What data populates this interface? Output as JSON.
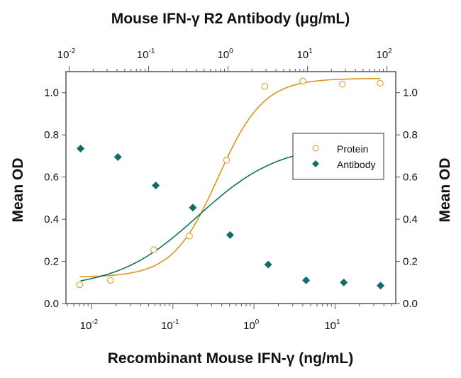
{
  "chart_data": {
    "type": "scatter",
    "title": "Mouse IFN-γ R2 Antibody (μg/mL)",
    "xlabel": "Recombinant Mouse IFN-γ (ng/mL)",
    "x2label": "Mouse IFN-γ R2 Antibody (μg/mL)",
    "ylabel": "Mean OD",
    "y2label": "Mean OD",
    "xscale": "log",
    "xlim": [
      0.0048,
      56
    ],
    "x2lim": [
      0.0091,
      129
    ],
    "ylim": [
      0,
      1.1
    ],
    "yticks": [
      "0.0",
      "0.2",
      "0.4",
      "0.6",
      "0.8",
      "1.0"
    ],
    "xticks": [
      {
        "base": "10",
        "exp": "-2"
      },
      {
        "base": "10",
        "exp": "-1"
      },
      {
        "base": "10",
        "exp": "0"
      },
      {
        "base": "10",
        "exp": "1"
      }
    ],
    "x2ticks": [
      {
        "base": "10",
        "exp": "-2"
      },
      {
        "base": "10",
        "exp": "-1"
      },
      {
        "base": "10",
        "exp": "0"
      },
      {
        "base": "10",
        "exp": "1"
      },
      {
        "base": "10",
        "exp": "2"
      }
    ],
    "grid": false,
    "legend_position": "right",
    "series": [
      {
        "name": "Protein",
        "axis": "bottom",
        "marker": "open-circle",
        "color": "#d8961e",
        "x": [
          0.0071,
          0.017,
          0.058,
          0.16,
          0.46,
          1.36,
          4.0,
          12.3,
          36
        ],
        "y": [
          0.089,
          0.11,
          0.255,
          0.32,
          0.68,
          1.03,
          1.055,
          1.04,
          1.045
        ],
        "fit": {
          "bottom": 0.125,
          "top": 1.068,
          "ec50": 0.36,
          "hill": 1.55
        }
      },
      {
        "name": "Antibody",
        "axis": "top",
        "marker": "filled-diamond",
        "color": "#0f6e66",
        "x": [
          0.0139,
          0.041,
          0.123,
          0.36,
          1.06,
          3.2,
          9.6,
          28.6,
          83
        ],
        "y": [
          0.735,
          0.695,
          0.56,
          0.455,
          0.325,
          0.185,
          0.11,
          0.1,
          0.085
        ],
        "fit": {
          "bottom": 0.072,
          "top": 0.76,
          "ec50": 0.42,
          "hill": 0.85
        }
      }
    ]
  }
}
